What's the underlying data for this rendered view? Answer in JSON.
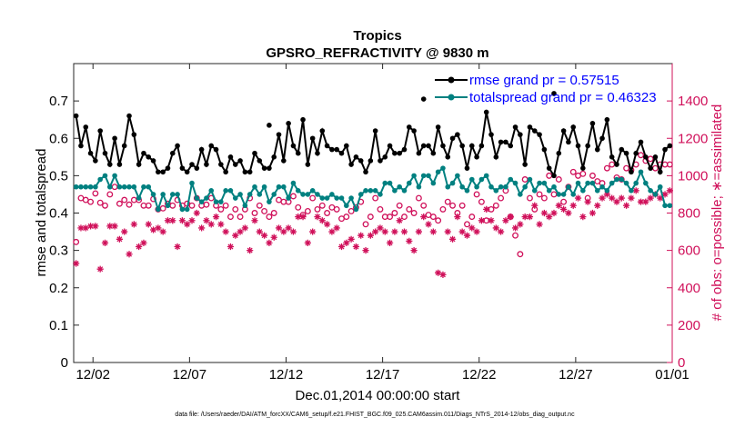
{
  "chart_data": {
    "type": "line",
    "title": "Tropics",
    "subtitle": "GPSRO_REFRACTIVITY @ 9830 m",
    "xlabel": "Dec.01,2014 00:00:00 start",
    "ylabel_left": "rmse and totalspread",
    "ylabel_right": "# of obs: o=possible; ∗=assimilated",
    "footnote": "data file: /Users/raeder/DAI/ATM_forcXX/CAM6_setup/f.e21.FHIST_BGC.f09_025.CAM6assim.011/Diags_NTrS_2014-12/obs_diag_output.nc",
    "xlim": [
      0,
      31
    ],
    "ylim_left": [
      0,
      0.8
    ],
    "ylim_right": [
      0,
      1600
    ],
    "x_ticks": [
      1,
      6,
      11,
      16,
      21,
      26,
      31
    ],
    "x_tick_labels": [
      "12/02",
      "12/07",
      "12/12",
      "12/17",
      "12/22",
      "12/27",
      "01/01"
    ],
    "y_ticks_left": [
      0,
      0.1,
      0.2,
      0.3,
      0.4,
      0.5,
      0.6,
      0.7
    ],
    "y_tick_labels_left": [
      "0",
      "0.1",
      "0.2",
      "0.3",
      "0.4",
      "0.5",
      "0.6",
      "0.7"
    ],
    "y_ticks_right": [
      0,
      200,
      400,
      600,
      800,
      1000,
      1200,
      1400
    ],
    "y_tick_labels_right": [
      "0",
      "200",
      "400",
      "600",
      "800",
      "1000",
      "1200",
      "1400"
    ],
    "legend": {
      "placement": "top-right",
      "entries": [
        "rmse grand pr = 0.57515",
        "totalspread grand pr = 0.46323"
      ]
    },
    "x": [
      0.125,
      0.375,
      0.625,
      0.875,
      1.125,
      1.375,
      1.625,
      1.875,
      2.125,
      2.375,
      2.625,
      2.875,
      3.125,
      3.375,
      3.625,
      3.875,
      4.125,
      4.375,
      4.625,
      4.875,
      5.125,
      5.375,
      5.625,
      5.875,
      6.125,
      6.375,
      6.625,
      6.875,
      7.125,
      7.375,
      7.625,
      7.875,
      8.125,
      8.375,
      8.625,
      8.875,
      9.125,
      9.375,
      9.625,
      9.875,
      10.125,
      10.375,
      10.625,
      10.875,
      11.125,
      11.375,
      11.625,
      11.875,
      12.125,
      12.375,
      12.625,
      12.875,
      13.125,
      13.375,
      13.625,
      13.875,
      14.125,
      14.375,
      14.625,
      14.875,
      15.125,
      15.375,
      15.625,
      15.875,
      16.125,
      16.375,
      16.625,
      16.875,
      17.125,
      17.375,
      17.625,
      17.875,
      18.125,
      18.375,
      18.625,
      18.875,
      19.125,
      19.375,
      19.625,
      19.875,
      20.125,
      20.375,
      20.625,
      20.875,
      21.125,
      21.375,
      21.625,
      21.875,
      22.125,
      22.375,
      22.625,
      22.875,
      23.125,
      23.375,
      23.625,
      23.875,
      24.125,
      24.375,
      24.625,
      24.875,
      25.125,
      25.375,
      25.625,
      25.875,
      26.125,
      26.375,
      26.625,
      26.875,
      27.125,
      27.375,
      27.625,
      27.875,
      28.125,
      28.375,
      28.625,
      28.875,
      29.125,
      29.375,
      29.625,
      29.875,
      30.125,
      30.375,
      30.625,
      30.875
    ],
    "series": [
      {
        "name": "rmse grand pr = 0.57515",
        "axis": "left",
        "color": "#000000",
        "values": [
          0.66,
          0.58,
          0.63,
          0.56,
          0.54,
          0.62,
          0.56,
          0.53,
          0.6,
          0.53,
          0.58,
          0.66,
          0.61,
          0.53,
          0.56,
          0.55,
          0.54,
          0.51,
          0.51,
          0.52,
          0.56,
          0.58,
          0.52,
          0.51,
          0.53,
          0.52,
          0.57,
          0.53,
          0.58,
          0.57,
          0.53,
          0.51,
          0.55,
          0.53,
          0.54,
          0.51,
          0.51,
          0.56,
          0.54,
          0.52,
          0.52,
          0.55,
          0.61,
          0.54,
          0.64,
          0.58,
          0.56,
          0.65,
          0.53,
          0.6,
          0.56,
          0.62,
          0.58,
          0.57,
          0.57,
          0.56,
          0.58,
          0.53,
          0.55,
          0.54,
          0.51,
          0.54,
          0.62,
          0.54,
          0.55,
          0.58,
          0.56,
          0.56,
          0.57,
          0.63,
          0.62,
          0.56,
          0.58,
          0.58,
          0.56,
          0.63,
          0.58,
          0.55,
          0.6,
          0.61,
          0.58,
          0.52,
          0.58,
          0.55,
          0.58,
          0.67,
          0.61,
          0.55,
          0.59,
          0.59,
          0.58,
          0.63,
          0.61,
          0.53,
          0.63,
          0.62,
          0.61,
          0.57,
          0.52,
          0.5,
          0.56,
          0.62,
          0.59,
          0.63,
          0.58,
          0.52,
          0.58,
          0.64,
          0.57,
          0.6,
          0.65,
          0.55,
          0.53,
          0.57,
          0.56,
          0.51,
          0.56,
          0.59,
          0.55,
          0.52,
          0.55,
          0.51,
          0.57,
          0.58
        ],
        "highlights": {
          "x": [
            10.125,
            18.125,
            24.875
          ],
          "values": [
            0.635,
            0.705,
            0.72
          ]
        }
      },
      {
        "name": "totalspread grand pr = 0.46323",
        "axis": "left",
        "color": "#008080",
        "values": [
          0.47,
          0.47,
          0.47,
          0.47,
          0.47,
          0.49,
          0.5,
          0.47,
          0.5,
          0.47,
          0.47,
          0.47,
          0.47,
          0.44,
          0.47,
          0.47,
          0.45,
          0.41,
          0.45,
          0.42,
          0.45,
          0.45,
          0.41,
          0.41,
          0.48,
          0.44,
          0.43,
          0.44,
          0.46,
          0.43,
          0.43,
          0.46,
          0.46,
          0.44,
          0.45,
          0.42,
          0.45,
          0.47,
          0.45,
          0.47,
          0.43,
          0.45,
          0.47,
          0.47,
          0.44,
          0.48,
          0.46,
          0.45,
          0.45,
          0.46,
          0.45,
          0.44,
          0.44,
          0.45,
          0.44,
          0.44,
          0.42,
          0.44,
          0.41,
          0.45,
          0.46,
          0.46,
          0.46,
          0.45,
          0.48,
          0.48,
          0.46,
          0.47,
          0.46,
          0.48,
          0.5,
          0.47,
          0.5,
          0.5,
          0.48,
          0.51,
          0.52,
          0.47,
          0.48,
          0.5,
          0.47,
          0.46,
          0.49,
          0.47,
          0.49,
          0.5,
          0.47,
          0.46,
          0.47,
          0.47,
          0.49,
          0.48,
          0.45,
          0.47,
          0.49,
          0.46,
          0.48,
          0.48,
          0.46,
          0.47,
          0.45,
          0.45,
          0.47,
          0.45,
          0.48,
          0.46,
          0.48,
          0.48,
          0.46,
          0.47,
          0.46,
          0.48,
          0.49,
          0.49,
          0.48,
          0.46,
          0.48,
          0.51,
          0.48,
          0.46,
          0.45,
          0.47,
          0.42,
          0.42
        ]
      },
      {
        "name": "possible obs",
        "axis": "right",
        "marker": "o",
        "color": "#d0105a",
        "values": [
          645,
          880,
          870,
          860,
          905,
          855,
          840,
          900,
          940,
          850,
          870,
          845,
          870,
          870,
          840,
          840,
          875,
          820,
          825,
          850,
          840,
          870,
          840,
          850,
          840,
          880,
          840,
          845,
          880,
          840,
          820,
          840,
          780,
          820,
          780,
          820,
          880,
          800,
          840,
          810,
          780,
          800,
          870,
          860,
          860,
          890,
          830,
          790,
          810,
          880,
          820,
          840,
          800,
          830,
          820,
          770,
          780,
          810,
          830,
          860,
          740,
          780,
          880,
          820,
          780,
          780,
          800,
          840,
          780,
          820,
          800,
          880,
          840,
          790,
          780,
          760,
          820,
          860,
          840,
          800,
          840,
          740,
          780,
          900,
          860,
          760,
          820,
          840,
          880,
          920,
          780,
          680,
          580,
          980,
          880,
          820,
          900,
          880,
          1000,
          900,
          980,
          860,
          940,
          1020,
          1000,
          1010,
          880,
          1000,
          970,
          960,
          1040,
          1060,
          990,
          980,
          1040,
          1030,
          1060,
          1110,
          1080,
          1090,
          1040,
          1060,
          1060,
          1060
        ]
      },
      {
        "name": "assimilated obs",
        "axis": "right",
        "marker": "*",
        "color": "#d0105a",
        "values": [
          530,
          720,
          720,
          730,
          730,
          500,
          640,
          730,
          730,
          660,
          700,
          580,
          740,
          620,
          640,
          740,
          710,
          720,
          700,
          760,
          760,
          620,
          760,
          740,
          760,
          800,
          720,
          760,
          740,
          780,
          740,
          700,
          620,
          680,
          700,
          720,
          600,
          760,
          700,
          680,
          640,
          670,
          720,
          700,
          720,
          700,
          780,
          780,
          640,
          700,
          780,
          760,
          740,
          700,
          720,
          620,
          640,
          660,
          620,
          680,
          600,
          680,
          700,
          720,
          700,
          640,
          700,
          760,
          700,
          650,
          600,
          700,
          780,
          740,
          700,
          480,
          470,
          700,
          660,
          780,
          700,
          680,
          720,
          700,
          760,
          820,
          760,
          720,
          700,
          760,
          780,
          720,
          740,
          780,
          780,
          840,
          740,
          800,
          780,
          800,
          840,
          820,
          800,
          840,
          880,
          780,
          860,
          800,
          840,
          880,
          900,
          880,
          860,
          880,
          840,
          880,
          920,
          860,
          860,
          880,
          900,
          880,
          900,
          920
        ]
      }
    ]
  }
}
